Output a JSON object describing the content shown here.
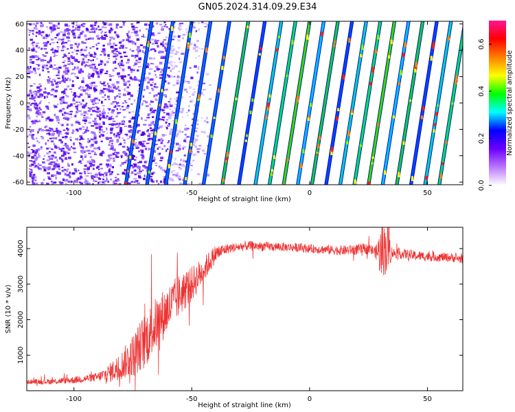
{
  "title": "GN05.2024.314.09.29.E34",
  "chart_data": [
    {
      "type": "heatmap",
      "xlabel": "Height of straight line (km)",
      "ylabel": "Frequency (Hz)",
      "xlim": [
        -120,
        65
      ],
      "ylim": [
        -62,
        62
      ],
      "xticks": [
        -100,
        -50,
        0,
        50
      ],
      "yticks": [
        -60,
        -40,
        -20,
        0,
        20,
        40,
        60
      ],
      "noise_region_x": [
        -120,
        -42
      ],
      "stripe_x_at_top": [
        -67,
        -58,
        -50,
        -42,
        -34,
        -26,
        -19,
        -12,
        -6,
        0,
        6,
        12,
        18,
        24,
        30,
        36,
        42,
        48,
        54,
        60,
        66
      ],
      "stripe_x_offset_bottom": -11,
      "colorbar": {
        "label": "Normalized spectral amplitude",
        "range": [
          0,
          0.7
        ],
        "ticks": [
          0.0,
          0.2,
          0.4,
          0.6
        ],
        "colors": [
          "#ffffff",
          "#bb77ff",
          "#6a00ff",
          "#0000ff",
          "#00ffff",
          "#00ff00",
          "#ffff00",
          "#ff7f00",
          "#ff0000",
          "#ff1493"
        ]
      }
    },
    {
      "type": "line",
      "xlabel": "Height of straight line (km)",
      "ylabel": "SNR (10 * v/v)",
      "xlim": [
        -120,
        65
      ],
      "ylim": [
        0,
        4600
      ],
      "xticks": [
        -100,
        -50,
        0,
        50
      ],
      "yticks": [
        1000,
        2000,
        3000,
        4000
      ],
      "color": "#ee3333",
      "envelope": {
        "x": [
          -120,
          -110,
          -100,
          -90,
          -85,
          -80,
          -75,
          -70,
          -65,
          -60,
          -55,
          -50,
          -45,
          -40,
          -35,
          -30,
          -25,
          -20,
          -15,
          -10,
          -5,
          0,
          5,
          10,
          15,
          20,
          25,
          28,
          30,
          33,
          35,
          40,
          45,
          50,
          55,
          60,
          65
        ],
        "y": [
          250,
          260,
          300,
          380,
          500,
          700,
          1000,
          1400,
          1900,
          2300,
          2700,
          3000,
          3400,
          3850,
          4000,
          4050,
          4080,
          4060,
          4050,
          4040,
          4030,
          4000,
          3980,
          3960,
          3950,
          3980,
          4000,
          3900,
          3900,
          4050,
          3880,
          3850,
          3800,
          3780,
          3760,
          3750,
          3700
        ]
      },
      "noise_amplitude": {
        "x": [
          -120,
          -90,
          -80,
          -70,
          -60,
          -50,
          -42,
          -35,
          0,
          28,
          30,
          33,
          35,
          65
        ],
        "y": [
          60,
          120,
          400,
          800,
          700,
          500,
          300,
          140,
          120,
          160,
          700,
          800,
          150,
          120
        ]
      }
    }
  ]
}
